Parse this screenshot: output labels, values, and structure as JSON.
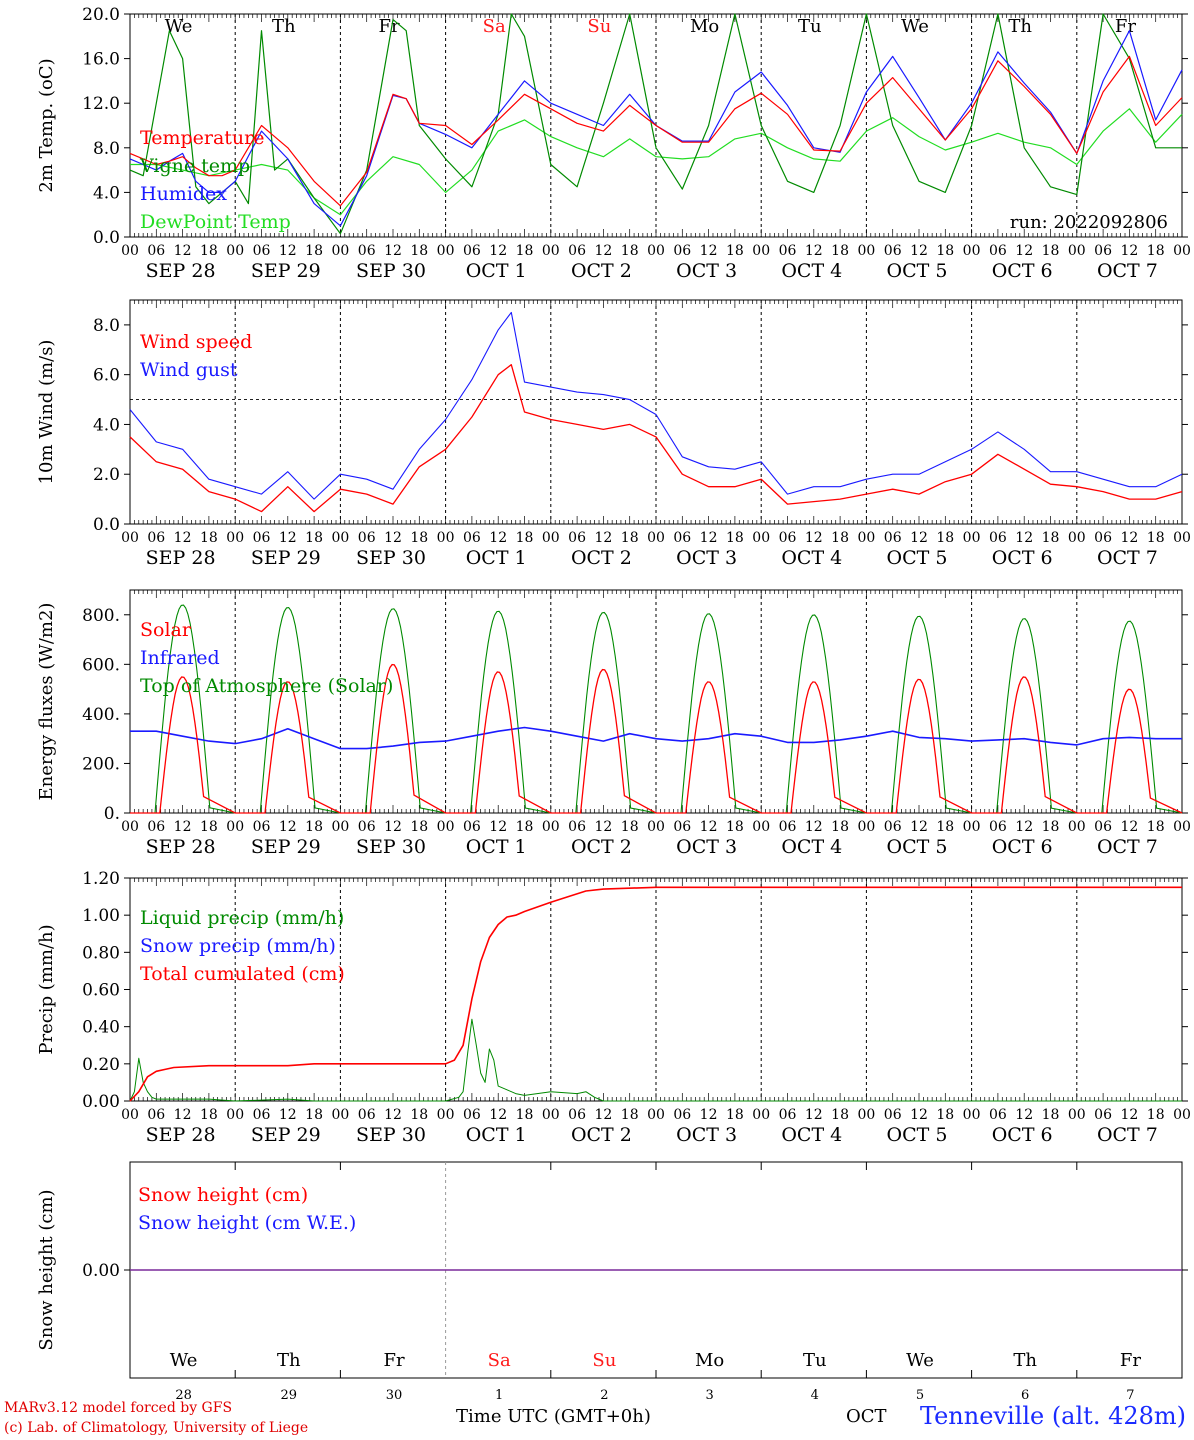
{
  "colors": {
    "red": "#ff0000",
    "green": "#008a00",
    "blue": "#1a1aff",
    "lightgreen": "#22dd22",
    "weekend": "#ff1a1a",
    "weekday": "#000000"
  },
  "days": {
    "top_names": [
      "We",
      "Th",
      "Fr",
      "Sa",
      "Su",
      "Mo",
      "Tu",
      "We",
      "Th",
      "Fr"
    ],
    "weekend": [
      false,
      false,
      false,
      true,
      true,
      false,
      false,
      false,
      false,
      false
    ],
    "dates": [
      "SEP 28",
      "SEP 29",
      "SEP 30",
      "OCT  1",
      "OCT  2",
      "OCT  3",
      "OCT  4",
      "OCT  5",
      "OCT  6",
      "OCT  7"
    ],
    "day_numbers": [
      "28",
      "29",
      "30",
      "1",
      "2",
      "3",
      "4",
      "5",
      "6",
      "7"
    ],
    "hour_ticks": [
      "00",
      "06",
      "12",
      "18"
    ],
    "last_tick": "00"
  },
  "run_label": "run: 2022092806",
  "footer": {
    "credit_line1": "MARv3.12 model forced by GFS",
    "credit_line2": "(c) Lab. of Climatology, University of Liege",
    "xlabel": "Time UTC (GMT+0h)",
    "month": "OCT",
    "station": "Tenneville (alt. 428m)"
  },
  "chart_data": [
    {
      "type": "line",
      "ylabel": "2m Temp. (oC)",
      "ylim": [
        0,
        20
      ],
      "yticks": [
        "0.0",
        "4.0",
        "8.0",
        "12.0",
        "16.0",
        "20.0"
      ],
      "x_unit": "hours since SEP 28 00 UTC",
      "legend": [
        "Temperature",
        "Vigne temp",
        "Humidex",
        "DewPoint Temp"
      ],
      "series": [
        {
          "name": "Temperature",
          "color": "red",
          "x": [
            0,
            3,
            6,
            9,
            12,
            15,
            18,
            21,
            24,
            30,
            36,
            42,
            48,
            54,
            60,
            63,
            66,
            72,
            78,
            84,
            90,
            96,
            102,
            108,
            114,
            120,
            126,
            132,
            138,
            144,
            150,
            156,
            162,
            168,
            174,
            180,
            186,
            192,
            198,
            204,
            210,
            216,
            222,
            228,
            234,
            240
          ],
          "values": [
            7.5,
            7.0,
            6.5,
            6.8,
            7.2,
            6.2,
            5.5,
            5.5,
            6.0,
            10.0,
            8.0,
            5.0,
            2.8,
            5.8,
            12.8,
            12.4,
            10.2,
            10.0,
            8.3,
            10.5,
            12.8,
            11.5,
            10.2,
            9.5,
            11.8,
            10.0,
            8.5,
            8.5,
            11.5,
            12.9,
            11.0,
            7.8,
            7.7,
            12.0,
            14.3,
            11.5,
            8.7,
            11.5,
            15.8,
            13.5,
            11.0,
            7.5,
            13.0,
            16.2,
            10.0,
            12.5
          ]
        },
        {
          "name": "Vigne temp",
          "color": "green",
          "x": [
            0,
            3,
            6,
            9,
            12,
            15,
            18,
            21,
            24,
            27,
            30,
            33,
            36,
            42,
            48,
            54,
            60,
            63,
            66,
            72,
            78,
            84,
            87,
            90,
            96,
            102,
            108,
            114,
            120,
            126,
            132,
            138,
            144,
            150,
            156,
            162,
            168,
            174,
            180,
            186,
            192,
            198,
            204,
            210,
            216,
            222,
            228,
            234,
            240
          ],
          "values": [
            6.0,
            5.5,
            12.0,
            18.5,
            16.0,
            4.5,
            3.0,
            4.0,
            5.0,
            3.0,
            18.5,
            6.0,
            7.0,
            3.5,
            0.3,
            6.0,
            19.5,
            18.5,
            10.0,
            7.0,
            4.5,
            11.0,
            20.0,
            18.0,
            6.5,
            4.5,
            12.0,
            20.0,
            8.0,
            4.3,
            10.0,
            20.0,
            10.0,
            5.0,
            4.0,
            10.0,
            20.0,
            10.0,
            5.0,
            4.0,
            10.0,
            20.0,
            8.0,
            4.5,
            3.8,
            20.0,
            16.0,
            8.0,
            8.0
          ]
        },
        {
          "name": "Humidex",
          "color": "blue",
          "x": [
            0,
            3,
            6,
            9,
            12,
            15,
            18,
            21,
            24,
            30,
            36,
            42,
            48,
            54,
            60,
            63,
            66,
            72,
            78,
            84,
            90,
            96,
            102,
            108,
            114,
            120,
            126,
            132,
            138,
            144,
            150,
            156,
            162,
            168,
            174,
            180,
            186,
            192,
            198,
            204,
            210,
            216,
            222,
            228,
            234,
            240
          ],
          "values": [
            7.0,
            6.5,
            6.0,
            6.8,
            7.5,
            5.0,
            4.0,
            4.0,
            5.0,
            9.5,
            7.0,
            3.0,
            1.0,
            5.5,
            12.7,
            12.4,
            10.2,
            9.2,
            8.0,
            11.0,
            14.0,
            12.0,
            11.0,
            10.0,
            12.8,
            10.0,
            8.6,
            8.6,
            13.0,
            14.8,
            11.8,
            8.0,
            7.6,
            13.0,
            16.2,
            12.5,
            8.7,
            12.0,
            16.6,
            13.8,
            11.2,
            7.5,
            14.0,
            18.5,
            10.5,
            15.0
          ]
        },
        {
          "name": "DewPoint Temp",
          "color": "lightgreen",
          "x": [
            0,
            6,
            12,
            18,
            24,
            30,
            36,
            42,
            48,
            54,
            60,
            66,
            72,
            78,
            84,
            90,
            96,
            102,
            108,
            114,
            120,
            126,
            132,
            138,
            144,
            150,
            156,
            162,
            168,
            174,
            180,
            186,
            192,
            198,
            204,
            210,
            216,
            222,
            228,
            234,
            240
          ],
          "values": [
            6.5,
            6.5,
            6.0,
            5.5,
            6.0,
            6.5,
            6.0,
            3.5,
            2.0,
            5.0,
            7.2,
            6.5,
            4.0,
            6.0,
            9.5,
            10.5,
            9.0,
            8.0,
            7.2,
            8.8,
            7.2,
            7.0,
            7.2,
            8.8,
            9.3,
            8.0,
            7.0,
            6.8,
            9.5,
            10.7,
            9.0,
            7.8,
            8.5,
            9.3,
            8.5,
            8.0,
            6.5,
            9.5,
            11.5,
            8.5,
            11.0
          ]
        }
      ]
    },
    {
      "type": "line",
      "ylabel": "10m Wind (m/s)",
      "ylim": [
        0,
        9
      ],
      "yticks": [
        "0.0",
        "2.0",
        "4.0",
        "6.0",
        "8.0"
      ],
      "reference_line": 5.0,
      "x_unit": "hours since SEP 28 00 UTC",
      "legend": [
        "Wind speed",
        "Wind gust"
      ],
      "series": [
        {
          "name": "Wind speed",
          "color": "red",
          "x": [
            0,
            6,
            12,
            18,
            24,
            30,
            36,
            42,
            48,
            54,
            60,
            66,
            72,
            78,
            84,
            87,
            90,
            96,
            102,
            108,
            114,
            120,
            126,
            132,
            138,
            144,
            150,
            156,
            162,
            168,
            174,
            180,
            186,
            192,
            198,
            204,
            210,
            216,
            222,
            228,
            234,
            240
          ],
          "values": [
            3.5,
            2.5,
            2.2,
            1.3,
            1.0,
            0.5,
            1.5,
            0.5,
            1.4,
            1.2,
            0.8,
            2.3,
            3.0,
            4.3,
            6.0,
            6.4,
            4.5,
            4.2,
            4.0,
            3.8,
            4.0,
            3.5,
            2.0,
            1.5,
            1.5,
            1.8,
            0.8,
            0.9,
            1.0,
            1.2,
            1.4,
            1.2,
            1.7,
            2.0,
            2.8,
            2.2,
            1.6,
            1.5,
            1.3,
            1.0,
            1.0,
            1.3
          ]
        },
        {
          "name": "Wind gust",
          "color": "blue",
          "x": [
            0,
            6,
            12,
            18,
            24,
            30,
            36,
            42,
            48,
            54,
            60,
            66,
            72,
            78,
            84,
            87,
            90,
            96,
            102,
            108,
            114,
            120,
            126,
            132,
            138,
            144,
            150,
            156,
            162,
            168,
            174,
            180,
            186,
            192,
            198,
            204,
            210,
            216,
            222,
            228,
            234,
            240
          ],
          "values": [
            4.6,
            3.3,
            3.0,
            1.8,
            1.5,
            1.2,
            2.1,
            1.0,
            2.0,
            1.8,
            1.4,
            3.0,
            4.2,
            5.8,
            7.8,
            8.5,
            5.7,
            5.5,
            5.3,
            5.2,
            5.0,
            4.4,
            2.7,
            2.3,
            2.2,
            2.5,
            1.2,
            1.5,
            1.5,
            1.8,
            2.0,
            2.0,
            2.5,
            3.0,
            3.7,
            3.0,
            2.1,
            2.1,
            1.8,
            1.5,
            1.5,
            2.0
          ]
        }
      ]
    },
    {
      "type": "line",
      "ylabel": "Energy fluxes (W/m2)",
      "ylim": [
        0,
        900
      ],
      "yticks": [
        "0.",
        "200.",
        "400.",
        "600.",
        "800."
      ],
      "x_unit": "hours since SEP 28 00 UTC",
      "legend": [
        "Solar",
        "Infrared",
        "Top of Atmosphere (Solar)"
      ],
      "day_peaks": {
        "solar": [
          550,
          530,
          600,
          570,
          580,
          530,
          530,
          540,
          550,
          500
        ],
        "toa": [
          840,
          830,
          825,
          815,
          810,
          805,
          800,
          795,
          785,
          775
        ]
      },
      "series": [
        {
          "name": "Infrared",
          "color": "blue",
          "x": [
            0,
            6,
            12,
            18,
            24,
            30,
            36,
            42,
            48,
            54,
            60,
            66,
            72,
            78,
            84,
            90,
            96,
            102,
            108,
            114,
            120,
            126,
            132,
            138,
            144,
            150,
            156,
            162,
            168,
            174,
            180,
            186,
            192,
            198,
            204,
            210,
            216,
            222,
            228,
            234,
            240
          ],
          "values": [
            330,
            330,
            310,
            290,
            280,
            300,
            340,
            300,
            260,
            260,
            270,
            285,
            290,
            310,
            330,
            345,
            330,
            310,
            290,
            320,
            300,
            290,
            300,
            320,
            310,
            285,
            285,
            295,
            310,
            330,
            305,
            300,
            290,
            295,
            300,
            285,
            275,
            300,
            305,
            300,
            300
          ]
        }
      ]
    },
    {
      "type": "line",
      "ylabel": "Precip (mm/h)",
      "ylim": [
        0,
        1.2
      ],
      "yticks": [
        "0.00",
        "0.20",
        "0.40",
        "0.60",
        "0.80",
        "1.00",
        "1.20"
      ],
      "x_unit": "hours since SEP 28 00 UTC",
      "legend": [
        "Liquid precip (mm/h)",
        "Snow precip (mm/h)",
        "Total cumulated (cm)"
      ],
      "series": [
        {
          "name": "Liquid precip (mm/h)",
          "color": "green",
          "x": [
            0,
            1,
            2,
            3,
            4,
            5,
            6,
            8,
            12,
            18,
            24,
            36,
            42,
            72,
            75,
            76,
            77,
            78,
            79,
            80,
            81,
            82,
            83,
            84,
            86,
            88,
            90,
            96,
            102,
            104,
            106,
            108,
            120,
            240
          ],
          "values": [
            0,
            0.05,
            0.23,
            0.1,
            0.05,
            0.02,
            0.01,
            0.01,
            0.01,
            0.01,
            0.0,
            0.01,
            0.0,
            0.0,
            0.02,
            0.05,
            0.25,
            0.44,
            0.3,
            0.15,
            0.1,
            0.28,
            0.22,
            0.08,
            0.06,
            0.04,
            0.03,
            0.05,
            0.04,
            0.05,
            0.02,
            0.0,
            0.0,
            0.0
          ]
        },
        {
          "name": "Total cumulated (cm)",
          "color": "red",
          "x": [
            0,
            2,
            4,
            6,
            8,
            10,
            18,
            24,
            36,
            42,
            48,
            60,
            72,
            74,
            76,
            78,
            80,
            82,
            84,
            86,
            88,
            90,
            96,
            100,
            104,
            108,
            120,
            240
          ],
          "values": [
            0,
            0.05,
            0.13,
            0.16,
            0.17,
            0.18,
            0.19,
            0.19,
            0.19,
            0.2,
            0.2,
            0.2,
            0.2,
            0.22,
            0.3,
            0.55,
            0.75,
            0.88,
            0.95,
            0.99,
            1.0,
            1.02,
            1.07,
            1.1,
            1.13,
            1.14,
            1.15,
            1.15
          ]
        }
      ]
    },
    {
      "type": "line",
      "ylabel": "Snow height (cm)",
      "ytick": "0.00",
      "x_unit": "hours since SEP 28 00 UTC",
      "legend": [
        "Snow height (cm)",
        "Snow height (cm W.E.)"
      ],
      "series": [
        {
          "name": "Snow height (cm)",
          "color": "red",
          "x": [
            0,
            240
          ],
          "values": [
            0,
            0
          ]
        },
        {
          "name": "Snow height (cm W.E.)",
          "color": "blue",
          "x": [
            0,
            240
          ],
          "values": [
            0,
            0
          ]
        }
      ]
    }
  ]
}
